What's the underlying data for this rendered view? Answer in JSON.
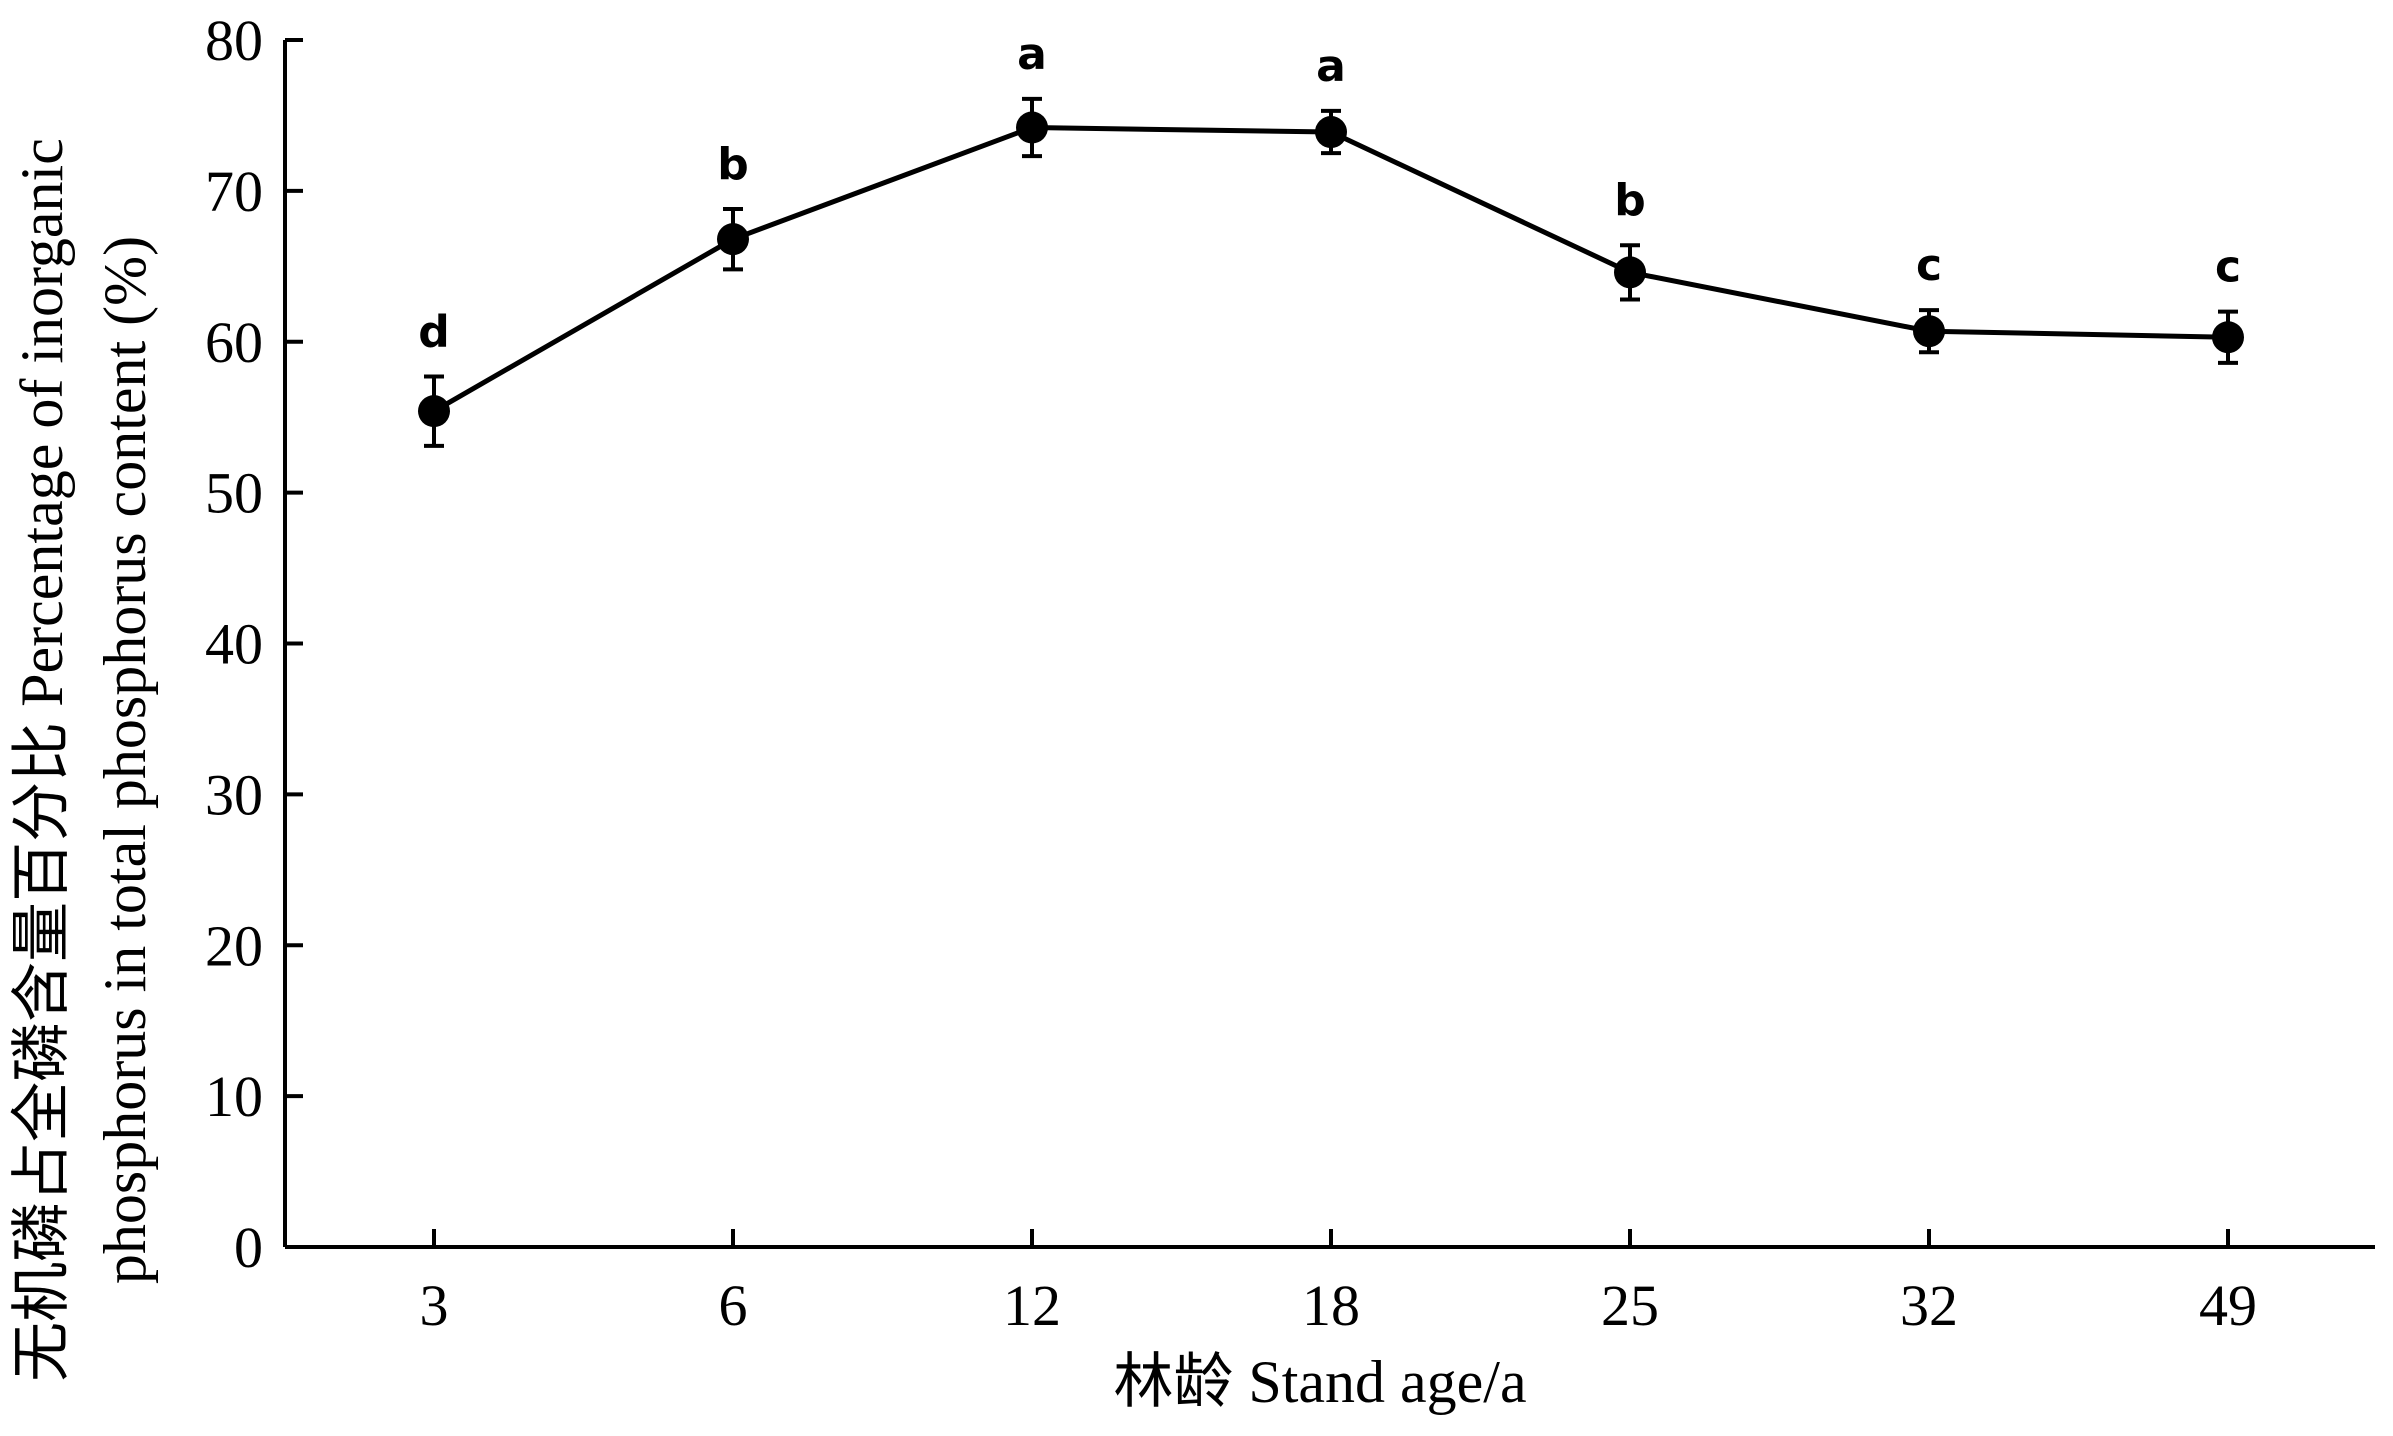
{
  "chart_data": {
    "type": "line",
    "x_categories": [
      "3",
      "6",
      "12",
      "18",
      "25",
      "32",
      "49"
    ],
    "series": [
      {
        "values": [
          55.4,
          66.8,
          74.2,
          73.9,
          64.6,
          60.7,
          60.3
        ],
        "errors": [
          2.3,
          2.0,
          1.9,
          1.4,
          1.8,
          1.4,
          1.7
        ],
        "significance": [
          "d",
          "b",
          "a",
          "a",
          "b",
          "c",
          "c"
        ]
      }
    ],
    "xlabel": "林龄  Stand age/a",
    "ylabel_line1": "无机磷占全磷含量百分比  Percentage of inorganic",
    "ylabel_line2": "phosphorus in total phosphorus content (%)",
    "ylim": [
      0,
      80
    ],
    "yticks": [
      "0",
      "10",
      "20",
      "30",
      "40",
      "50",
      "60",
      "70",
      "80"
    ],
    "grid": false,
    "line_color": "#000000",
    "marker_color": "#000000"
  }
}
